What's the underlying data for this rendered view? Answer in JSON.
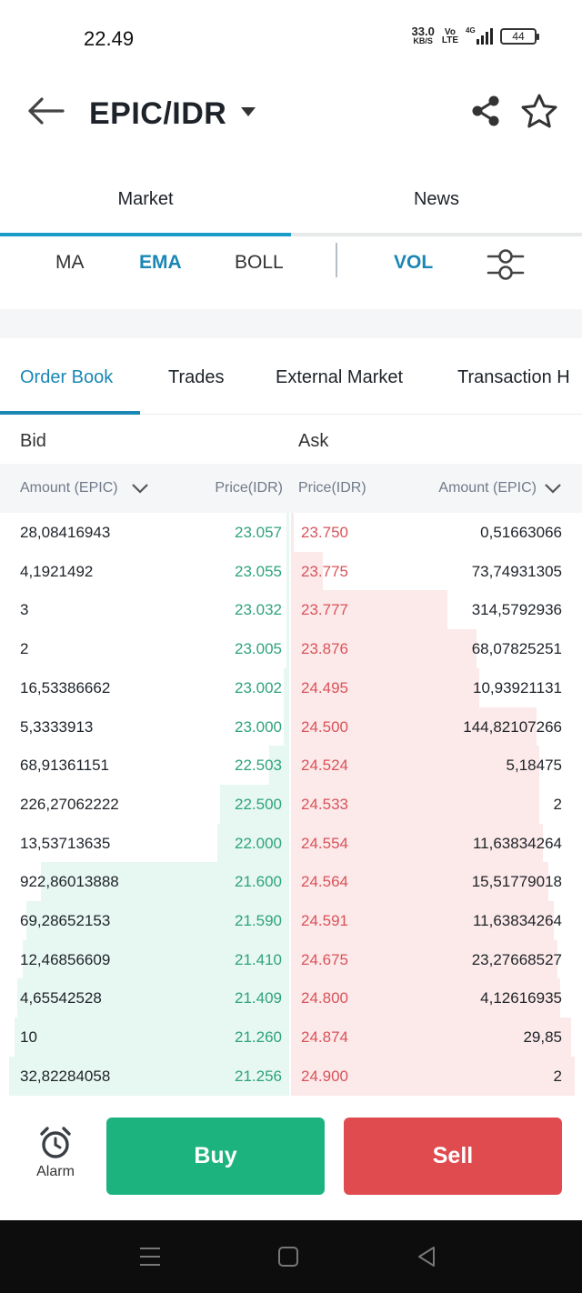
{
  "status_bar": {
    "time": "22.49",
    "net_speed": "33.0",
    "net_unit": "KB/S",
    "volte_top": "Vo",
    "volte_bottom": "LTE",
    "network": "4G",
    "battery": "44"
  },
  "header": {
    "pair": "EPIC/IDR",
    "icons": [
      "back-arrow-icon",
      "caret-down-icon",
      "share-icon",
      "star-icon"
    ]
  },
  "top_tabs": [
    {
      "label": "Market",
      "active": true
    },
    {
      "label": "News",
      "active": false
    }
  ],
  "indicators": {
    "ma": "MA",
    "ema": "EMA",
    "boll": "BOLL",
    "vol": "VOL",
    "active": [
      "EMA",
      "VOL"
    ]
  },
  "order_tabs": [
    {
      "label": "Order Book",
      "active": true
    },
    {
      "label": "Trades",
      "active": false
    },
    {
      "label": "External Market",
      "active": false
    },
    {
      "label": "Transaction H",
      "active": false
    }
  ],
  "book_headers": {
    "bid": "Bid",
    "ask": "Ask",
    "bid_amount": "Amount (EPIC)",
    "bid_price": "Price(IDR)",
    "ask_price": "Price(IDR)",
    "ask_amount": "Amount (EPIC)"
  },
  "rows": [
    {
      "bid_amount": "28,08416943",
      "bid_price": "23.057",
      "ask_price": "23.750",
      "ask_amount": "0,51663066"
    },
    {
      "bid_amount": "4,1921492",
      "bid_price": "23.055",
      "ask_price": "23.775",
      "ask_amount": "73,74931305"
    },
    {
      "bid_amount": "3",
      "bid_price": "23.032",
      "ask_price": "23.777",
      "ask_amount": "314,5792936"
    },
    {
      "bid_amount": "2",
      "bid_price": "23.005",
      "ask_price": "23.876",
      "ask_amount": "68,07825251"
    },
    {
      "bid_amount": "16,53386662",
      "bid_price": "23.002",
      "ask_price": "24.495",
      "ask_amount": "10,93921131"
    },
    {
      "bid_amount": "5,3333913",
      "bid_price": "23.000",
      "ask_price": "24.500",
      "ask_amount": "144,82107266"
    },
    {
      "bid_amount": "68,91361151",
      "bid_price": "22.503",
      "ask_price": "24.524",
      "ask_amount": "5,18475"
    },
    {
      "bid_amount": "226,27062222",
      "bid_price": "22.500",
      "ask_price": "24.533",
      "ask_amount": "2"
    },
    {
      "bid_amount": "13,53713635",
      "bid_price": "22.000",
      "ask_price": "24.554",
      "ask_amount": "11,63834264"
    },
    {
      "bid_amount": "922,86013888",
      "bid_price": "21.600",
      "ask_price": "24.564",
      "ask_amount": "15,51779018"
    },
    {
      "bid_amount": "69,28652153",
      "bid_price": "21.590",
      "ask_price": "24.591",
      "ask_amount": "11,63834264"
    },
    {
      "bid_amount": "12,46856609",
      "bid_price": "21.410",
      "ask_price": "24.675",
      "ask_amount": "23,27668527"
    },
    {
      "bid_amount": "4,65542528",
      "bid_price": "21.409",
      "ask_price": "24.800",
      "ask_amount": "4,12616935"
    },
    {
      "bid_amount": "10",
      "bid_price": "21.260",
      "ask_price": "24.874",
      "ask_amount": "29,85"
    },
    {
      "bid_amount": "32,82284058",
      "bid_price": "21.256",
      "ask_price": "24.900",
      "ask_amount": "2"
    }
  ],
  "depth": {
    "bid_cumulative_fraction": [
      0.01,
      0.01,
      0.01,
      0.01,
      0.02,
      0.02,
      0.07,
      0.24,
      0.25,
      0.86,
      0.91,
      0.92,
      0.94,
      0.95,
      0.97
    ],
    "ask_cumulative_fraction": [
      0.01,
      0.11,
      0.54,
      0.64,
      0.65,
      0.85,
      0.86,
      0.86,
      0.87,
      0.89,
      0.91,
      0.92,
      0.93,
      0.97,
      0.98
    ]
  },
  "bottom_bar": {
    "alarm_label": "Alarm",
    "buy_label": "Buy",
    "sell_label": "Sell"
  },
  "colors": {
    "accent": "#1a87b5",
    "buy": "#1db37e",
    "sell": "#e04b50",
    "bid_text": "#2ea37e",
    "ask_text": "#d9535a"
  }
}
